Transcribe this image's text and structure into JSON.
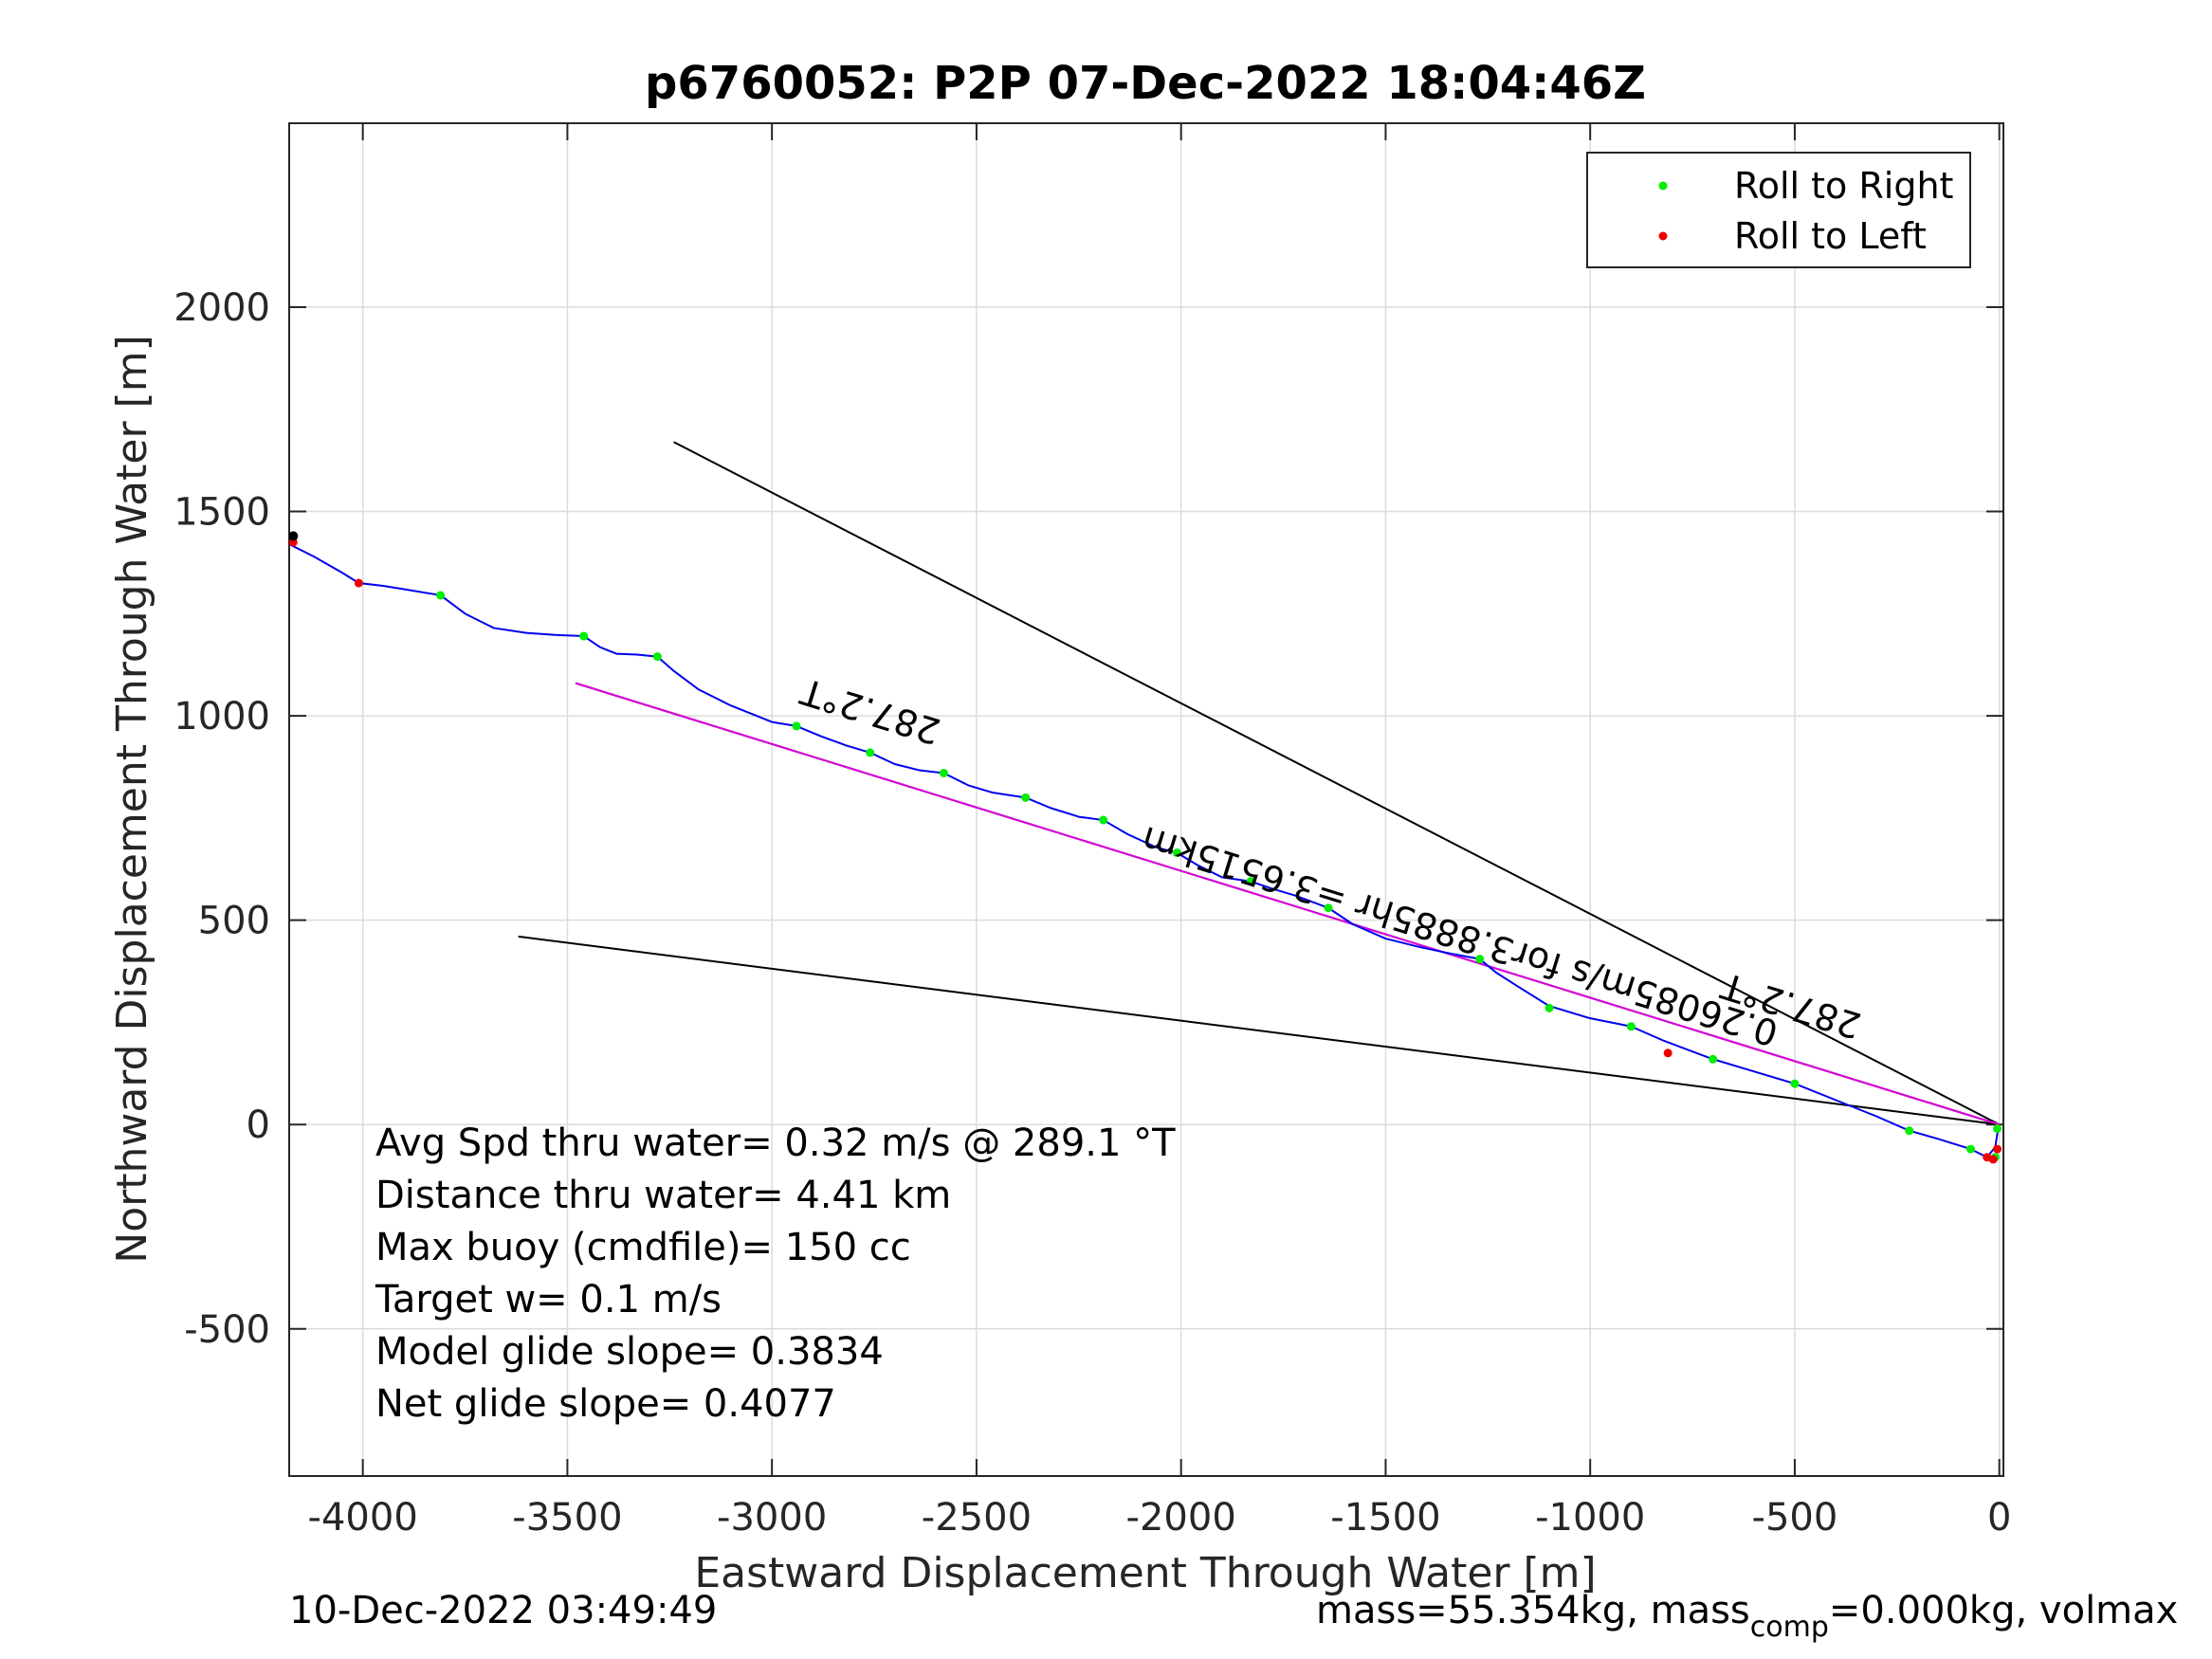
{
  "chart_data": {
    "type": "line",
    "title": "p6760052: P2P 07-Dec-2022 18:04:46Z",
    "xlabel": "Eastward Displacement Through Water [m]",
    "ylabel": "Northward Displacement Through Water [m]",
    "xlim": [
      -4180,
      10
    ],
    "ylim": [
      -860,
      2450
    ],
    "xticks": [
      -4000,
      -3500,
      -3000,
      -2500,
      -2000,
      -1500,
      -1000,
      -500,
      0
    ],
    "xtick_labels": [
      "-4000",
      "-3500",
      "-3000",
      "-2500",
      "-2000",
      "-1500",
      "-1000",
      "-500",
      "0"
    ],
    "yticks": [
      -500,
      0,
      500,
      1000,
      1500,
      2000
    ],
    "ytick_labels": [
      "-500",
      "0",
      "500",
      "1000",
      "1500",
      "2000"
    ],
    "grid": true,
    "legend_position": "top-right",
    "series": [
      {
        "name": "Roll to Right",
        "color": "#00ee00",
        "marker": "point",
        "x": [
          -3810,
          -3460,
          -3280,
          -2940,
          -2760,
          -2580,
          -2380,
          -2190,
          -2010,
          -1830,
          -1640,
          -1270,
          -1100,
          -900,
          -700,
          -500,
          -220,
          -70,
          -10,
          -5
        ],
        "y": [
          1295,
          1195,
          1145,
          975,
          910,
          860,
          800,
          745,
          665,
          595,
          530,
          405,
          285,
          240,
          160,
          100,
          -15,
          -60,
          -80,
          -10
        ]
      },
      {
        "name": "Roll to Left",
        "color": "#ee0000",
        "marker": "point",
        "x": [
          -4170,
          -4010,
          -810,
          -30,
          -15,
          -5
        ],
        "y": [
          1425,
          1325,
          175,
          -80,
          -85,
          -60
        ]
      }
    ],
    "track": {
      "color": "#0000ee",
      "x": [
        -4180,
        -4120,
        -4050,
        -4010,
        -3950,
        -3900,
        -3810,
        -3750,
        -3680,
        -3600,
        -3530,
        -3460,
        -3420,
        -3380,
        -3330,
        -3280,
        -3240,
        -3180,
        -3100,
        -3000,
        -2940,
        -2880,
        -2820,
        -2760,
        -2700,
        -2640,
        -2580,
        -2520,
        -2460,
        -2380,
        -2320,
        -2250,
        -2190,
        -2130,
        -2060,
        -2010,
        -1960,
        -1900,
        -1830,
        -1780,
        -1720,
        -1640,
        -1580,
        -1500,
        -1420,
        -1340,
        -1270,
        -1230,
        -1180,
        -1100,
        -1000,
        -900,
        -820,
        -700,
        -600,
        -500,
        -400,
        -300,
        -220,
        -150,
        -70,
        -30,
        -10,
        -2
      ],
      "y": [
        1420,
        1390,
        1350,
        1325,
        1318,
        1310,
        1295,
        1250,
        1215,
        1203,
        1198,
        1195,
        1168,
        1152,
        1150,
        1145,
        1110,
        1065,
        1025,
        985,
        975,
        950,
        928,
        910,
        882,
        867,
        860,
        830,
        812,
        800,
        775,
        753,
        745,
        710,
        678,
        665,
        635,
        605,
        595,
        578,
        560,
        530,
        490,
        455,
        435,
        418,
        405,
        372,
        340,
        290,
        260,
        240,
        205,
        160,
        130,
        100,
        60,
        20,
        -15,
        -35,
        -60,
        -80,
        -55,
        -5
      ]
    },
    "lines": [
      {
        "color": "#000000",
        "x": [
          -3240,
          0
        ],
        "y": [
          1670,
          0
        ]
      },
      {
        "color": "#000000",
        "x": [
          -3620,
          0
        ],
        "y": [
          460,
          0
        ]
      },
      {
        "color": "#000000",
        "x": [
          -3480,
          0
        ],
        "y": [
          1080,
          0
        ]
      },
      {
        "color": "#e000e0",
        "x": [
          -3480,
          0
        ],
        "y": [
          1080,
          0
        ]
      }
    ],
    "start_point": {
      "color": "#000000",
      "x": -4170,
      "y": 1440
    },
    "annotations": [
      {
        "text": "287.2°T",
        "x": -2750,
        "y": 1040,
        "angle": 197.2
      },
      {
        "text": "287.2°T",
        "x": -500,
        "y": 320,
        "angle": 197.2
      },
      {
        "text": "0.26085m/s for3.8885hr =3.6515km",
        "x": -1310,
        "y": 490,
        "angle": 197.2
      }
    ],
    "stats": [
      "Avg Spd thru water=  0.32 m/s @ 289.1 °T",
      "Distance thru water=  4.41 km",
      "Max buoy (cmdfile)= 150 cc",
      "Target w= 0.1 m/s",
      "Model glide slope= 0.3834",
      "Net glide slope= 0.4077"
    ],
    "footer_left": "10-Dec-2022 03:49:49",
    "footer_right_parts": [
      "mass=55.354kg, mass",
      "comp",
      "=0.000kg, volmax"
    ]
  }
}
